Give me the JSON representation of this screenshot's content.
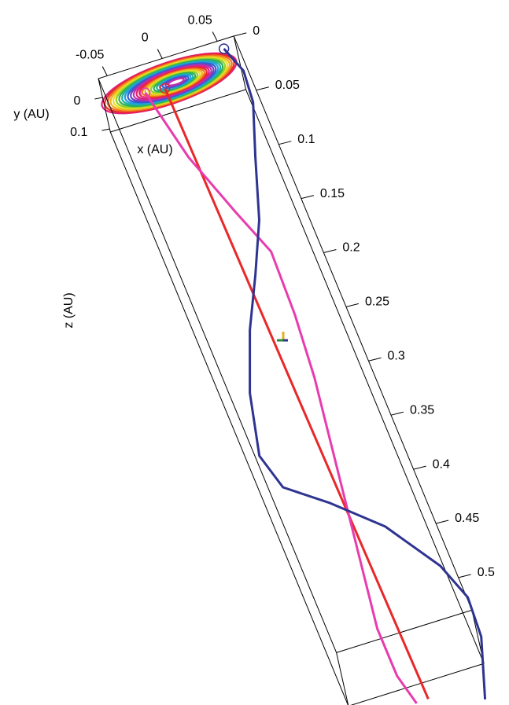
{
  "chart_data": {
    "type": "line3d",
    "xlabel": "x (AU)",
    "ylabel": "y (AU)",
    "zlabel": "z (AU)",
    "xlim": [
      -0.058,
      0.065
    ],
    "ylim": [
      -0.06,
      0.11
    ],
    "zlim": [
      0,
      0.53
    ],
    "xticks": [
      -0.05,
      0,
      0.05
    ],
    "yticks": [
      0,
      0.1
    ],
    "zticks": [
      0,
      0.05,
      0.1,
      0.15,
      0.2,
      0.25,
      0.3,
      0.35,
      0.4,
      0.45,
      0.5
    ],
    "series": [
      {
        "color": "#e8282a",
        "x": [
          -0.0049,
          -0.0011,
          0.0032
        ],
        "y": [
          0,
          0,
          0
        ],
        "z": [
          0.0086,
          0.2917,
          0.575
        ]
      },
      {
        "color": "#e83cae",
        "x": [
          -0.0222,
          -0.0089,
          0.0107,
          0.026,
          0.0241,
          0.0189,
          0.0106,
          0.0023,
          -0.006,
          -0.0143,
          -0.0142,
          -0.0076
        ],
        "y": [
          0,
          0,
          0,
          0,
          0,
          0,
          0,
          0,
          0,
          0,
          0,
          0
        ],
        "z": [
          0.0071,
          0.0708,
          0.1279,
          0.1691,
          0.2265,
          0.2829,
          0.3383,
          0.3937,
          0.4491,
          0.5045,
          0.5481,
          0.5756
        ]
      },
      {
        "color": "#2e3490",
        "x": [
          0.0538,
          0.0622,
          0.0594,
          0.0429,
          0.0251,
          0.0036,
          -0.0191,
          -0.0401,
          -0.0534,
          -0.0449,
          -0.0123,
          0.0241,
          0.0553,
          0.0669,
          0.0646,
          0.0468
        ],
        "y": [
          -0.04,
          -0.04,
          -0.04,
          -0.04,
          -0.04,
          -0.04,
          -0.04,
          -0.04,
          -0.04,
          -0.04,
          -0.04,
          -0.04,
          -0.04,
          -0.04,
          -0.04,
          -0.04
        ],
        "z": [
          0.0023,
          0.0253,
          0.0534,
          0.099,
          0.1513,
          0.1953,
          0.2388,
          0.2902,
          0.344,
          0.3757,
          0.4007,
          0.434,
          0.4803,
          0.513,
          0.5486,
          0.6009
        ]
      }
    ]
  }
}
